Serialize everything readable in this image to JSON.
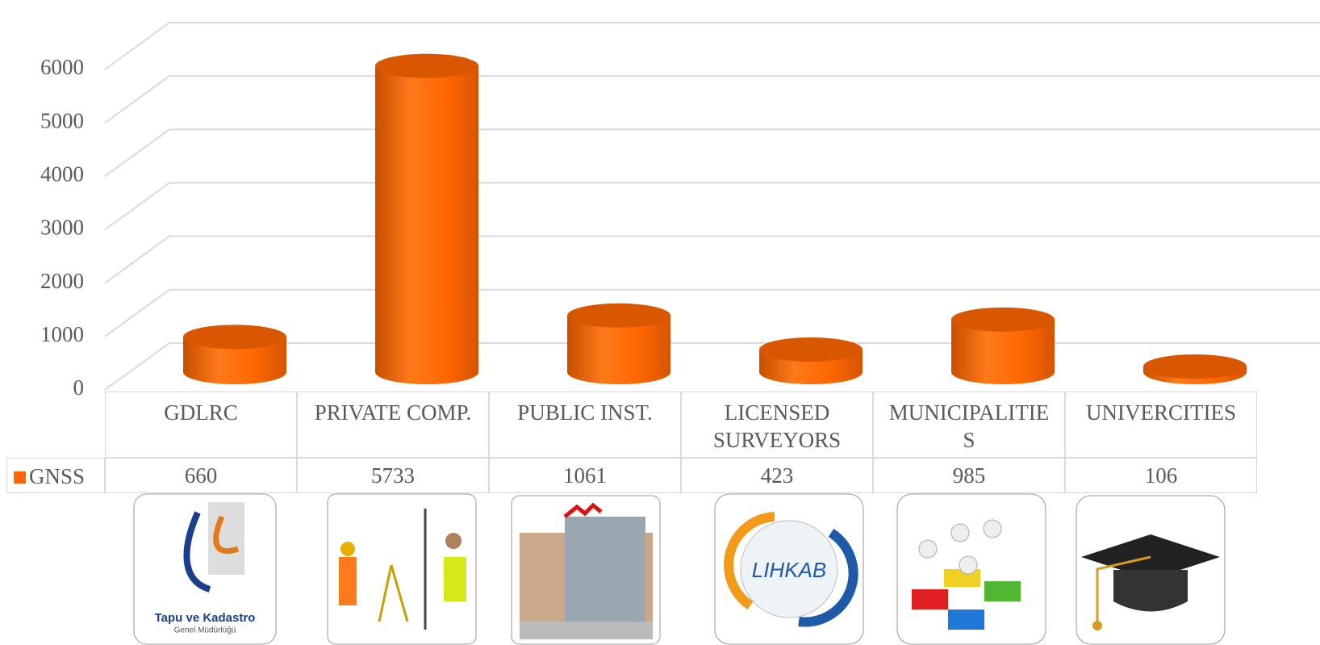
{
  "chart_data": {
    "type": "bar3d",
    "categories": [
      "GDLRC",
      "PRIVATE COMP.",
      "PUBLIC INST.",
      "LICENSED SURVEYORS",
      "MUNICIPALITIES",
      "UNIVERCITIES"
    ],
    "series": [
      {
        "name": "GNSS",
        "color": "#ff6600",
        "values": [
          660,
          5733,
          1061,
          423,
          985,
          106
        ]
      }
    ],
    "ylim": [
      0,
      6000
    ],
    "yticks": [
      0,
      1000,
      2000,
      3000,
      4000,
      5000,
      6000
    ],
    "grid": true,
    "data_table": true
  },
  "logos": {
    "tkgm_title": "Tapu ve Kadastro",
    "tkgm_subtitle": "Genel Müdürlüğü",
    "lihkab": "LIHKAB"
  }
}
